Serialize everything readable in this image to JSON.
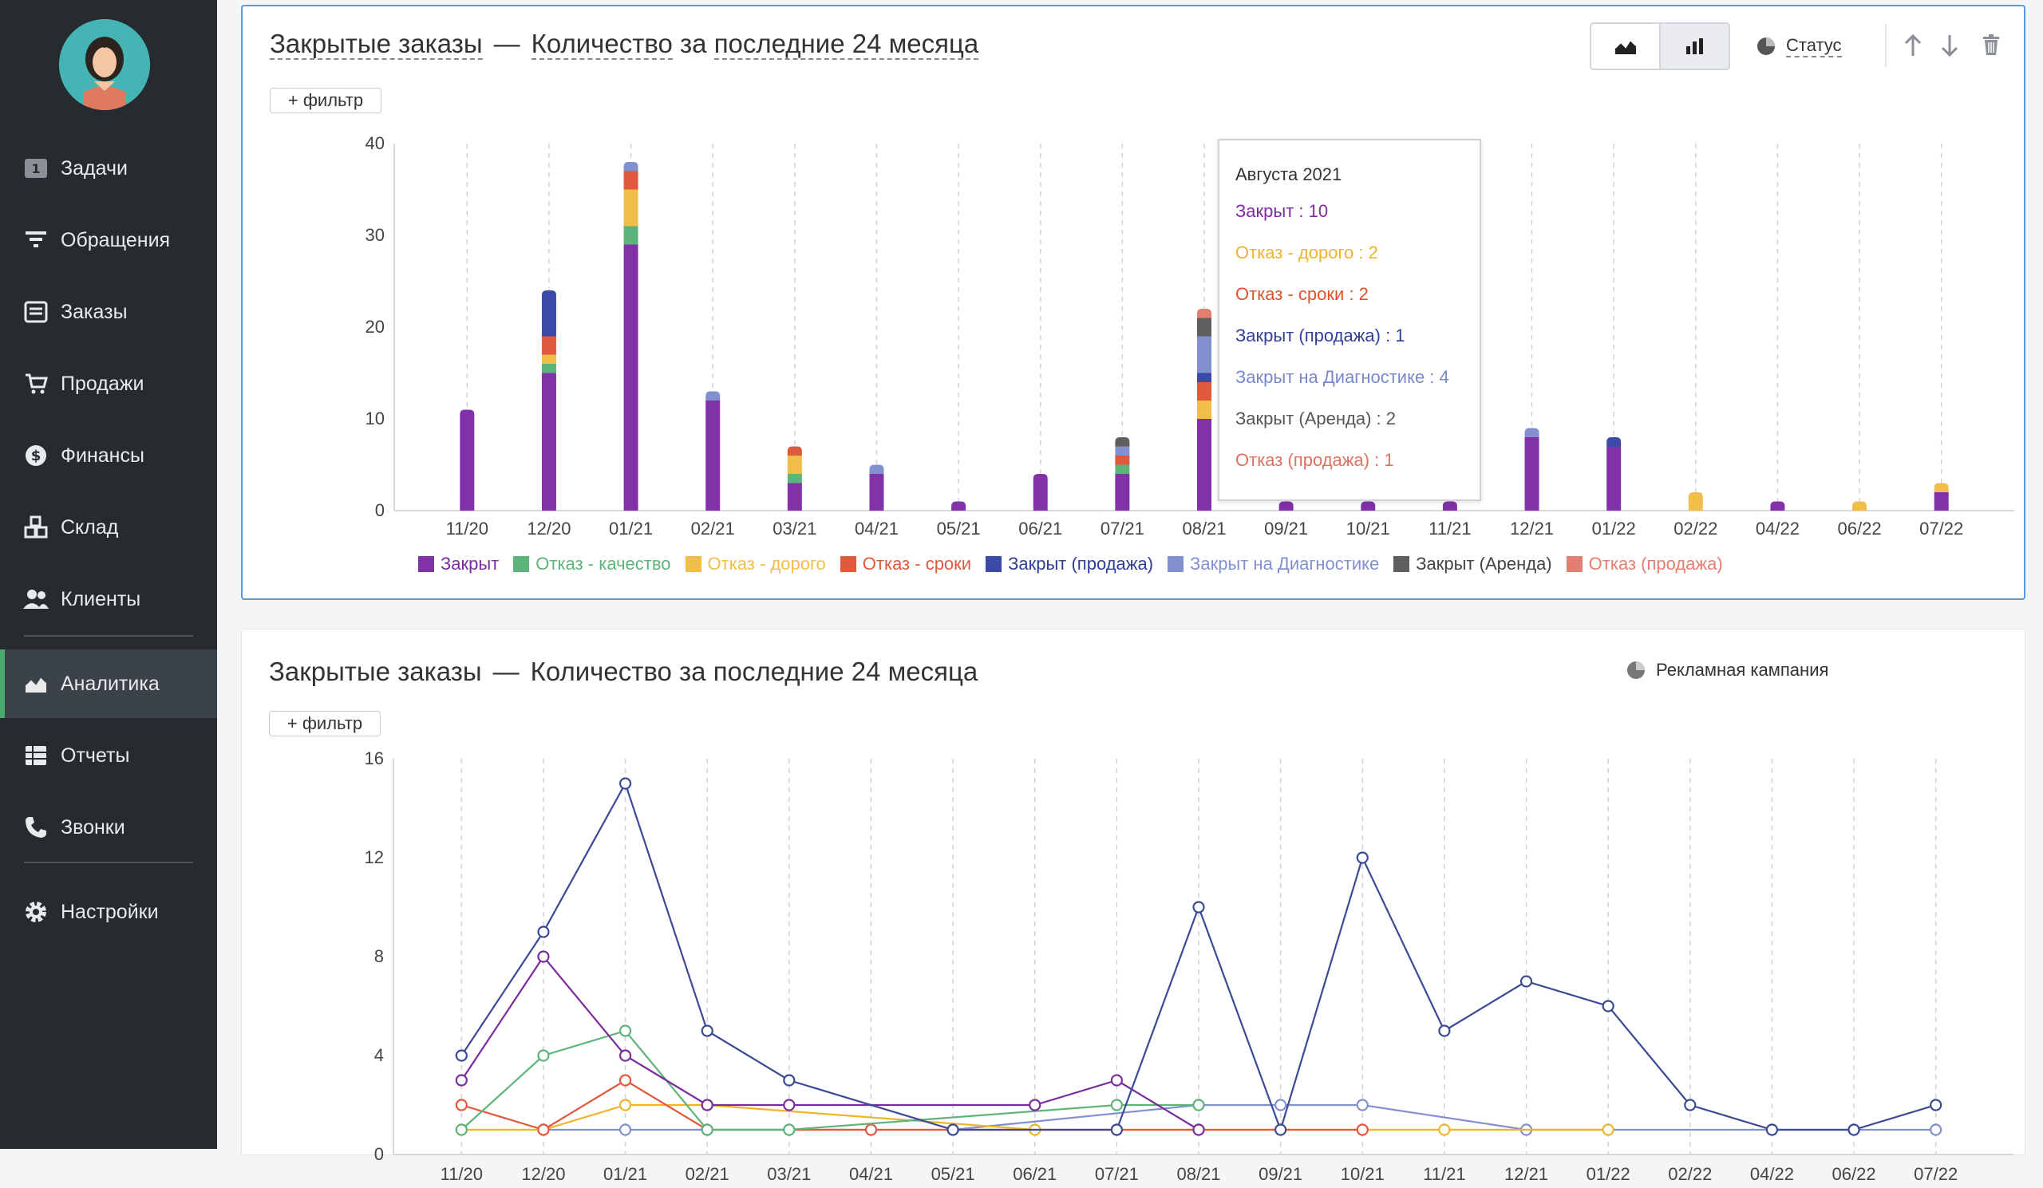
{
  "sidebar": {
    "items": [
      {
        "label": "Задачи",
        "icon": "tasks-badge-icon",
        "badge": "1"
      },
      {
        "label": "Обращения",
        "icon": "filter-icon"
      },
      {
        "label": "Заказы",
        "icon": "orders-icon"
      },
      {
        "label": "Продажи",
        "icon": "cart-icon"
      },
      {
        "label": "Финансы",
        "icon": "dollar-icon"
      },
      {
        "label": "Склад",
        "icon": "warehouse-boxes-icon"
      },
      {
        "label": "Клиенты",
        "icon": "users-icon"
      },
      {
        "label": "Аналитика",
        "icon": "area-chart-icon",
        "active": true
      },
      {
        "label": "Отчеты",
        "icon": "reports-grid-icon"
      },
      {
        "label": "Звонки",
        "icon": "phone-icon"
      },
      {
        "label": "Настройки",
        "icon": "gear-icon"
      }
    ]
  },
  "panel1": {
    "title_a": "Закрытые заказы",
    "title_sep": "—",
    "title_b": "Количество",
    "title_c": "за",
    "title_d": "последние 24 месяца",
    "filter_label": "+ фильтр",
    "group_label": "Статус",
    "tooltip": {
      "title": "Августа 2021",
      "rows": [
        {
          "text": "Закрыт : 10",
          "color": "#7b2d9e"
        },
        {
          "text": "Отказ - дорого : 2",
          "color": "#f0b429"
        },
        {
          "text": "Отказ - сроки : 2",
          "color": "#e0522b"
        },
        {
          "text": "Закрыт (продажа) : 1",
          "color": "#33409a"
        },
        {
          "text": "Закрыт на Диагностике : 4",
          "color": "#7b88c8"
        },
        {
          "text": "Закрыт (Аренда) : 2",
          "color": "#555555"
        },
        {
          "text": "Отказ (продажа) : 1",
          "color": "#e07060"
        }
      ]
    }
  },
  "panel2": {
    "title_a": "Закрытые заказы",
    "title_sep": "—",
    "title_b": "Количество",
    "title_c": "за",
    "title_d": "последние 24 месяца",
    "filter_label": "+ фильтр",
    "group_label": "Рекламная кампания"
  },
  "chart_data": [
    {
      "type": "bar",
      "stacked": true,
      "categories": [
        "11/20",
        "12/20",
        "01/21",
        "02/21",
        "03/21",
        "04/21",
        "05/21",
        "06/21",
        "07/21",
        "08/21",
        "09/21",
        "10/21",
        "11/21",
        "12/21",
        "01/22",
        "02/22",
        "04/22",
        "06/22",
        "07/22"
      ],
      "ylim": [
        0,
        40
      ],
      "yticks": [
        0,
        10,
        20,
        30,
        40
      ],
      "legend_position": "bottom",
      "series": [
        {
          "name": "Закрыт",
          "color": "#8331a8",
          "values": [
            11,
            15,
            29,
            12,
            3,
            4,
            1,
            4,
            4,
            10,
            1,
            1,
            1,
            8,
            7,
            0,
            1,
            0,
            2
          ]
        },
        {
          "name": "Отказ - качество",
          "color": "#5db47b",
          "values": [
            0,
            1,
            2,
            0,
            1,
            0,
            0,
            0,
            1,
            0,
            0,
            0,
            0,
            0,
            0,
            0,
            0,
            0,
            0
          ]
        },
        {
          "name": "Отказ - дорого",
          "color": "#f2be4a",
          "values": [
            0,
            1,
            4,
            0,
            2,
            0,
            0,
            0,
            0,
            2,
            0,
            0,
            0,
            0,
            0,
            2,
            0,
            1,
            1
          ]
        },
        {
          "name": "Отказ - сроки",
          "color": "#e2583a",
          "values": [
            0,
            2,
            2,
            0,
            1,
            0,
            0,
            0,
            1,
            2,
            0,
            0,
            0,
            0,
            0,
            0,
            0,
            0,
            0
          ]
        },
        {
          "name": "Закрыт (продажа)",
          "color": "#3a4aa6",
          "values": [
            0,
            5,
            0,
            0,
            0,
            0,
            0,
            0,
            0,
            1,
            0,
            0,
            0,
            0,
            1,
            0,
            0,
            0,
            0
          ]
        },
        {
          "name": "Закрыт на Диагностике",
          "color": "#8290cf",
          "values": [
            0,
            0,
            1,
            1,
            0,
            1,
            0,
            0,
            1,
            4,
            0,
            0,
            0,
            1,
            0,
            0,
            0,
            0,
            0
          ]
        },
        {
          "name": "Закрыт (Аренда)",
          "color": "#5f5f5f",
          "values": [
            0,
            0,
            0,
            0,
            0,
            0,
            0,
            0,
            1,
            2,
            0,
            0,
            0,
            0,
            0,
            0,
            0,
            0,
            0
          ]
        },
        {
          "name": "Отказ (продажа)",
          "color": "#e47e70",
          "values": [
            0,
            0,
            0,
            0,
            0,
            0,
            0,
            0,
            0,
            1,
            0,
            0,
            0,
            0,
            0,
            0,
            0,
            0,
            0
          ]
        }
      ]
    },
    {
      "type": "line",
      "categories": [
        "11/20",
        "12/20",
        "01/21",
        "02/21",
        "03/21",
        "04/21",
        "05/21",
        "06/21",
        "07/21",
        "08/21",
        "09/21",
        "10/21",
        "11/21",
        "12/21",
        "01/22",
        "02/22",
        "04/22",
        "06/22",
        "07/22"
      ],
      "ylim": [
        0,
        16
      ],
      "yticks": [
        0,
        4,
        8,
        12,
        16
      ],
      "series": [
        {
          "color": "#3b4a93",
          "values": [
            4,
            9,
            15,
            5,
            3,
            null,
            1,
            null,
            1,
            10,
            1,
            12,
            5,
            7,
            6,
            2,
            1,
            1,
            2
          ]
        },
        {
          "color": "#7b2d9e",
          "values": [
            3,
            8,
            4,
            2,
            2,
            null,
            null,
            2,
            3,
            1,
            null,
            null,
            null,
            null,
            null,
            null,
            null,
            null,
            null
          ]
        },
        {
          "color": "#5db47b",
          "values": [
            1,
            4,
            5,
            1,
            1,
            null,
            null,
            null,
            2,
            2,
            null,
            null,
            null,
            null,
            null,
            null,
            null,
            null,
            null
          ]
        },
        {
          "color": "#e2583a",
          "values": [
            2,
            1,
            3,
            1,
            null,
            1,
            null,
            null,
            1,
            1,
            null,
            1,
            null,
            null,
            null,
            null,
            null,
            null,
            null
          ]
        },
        {
          "color": "#f0b429",
          "values": [
            1,
            1,
            2,
            2,
            null,
            null,
            null,
            1,
            null,
            null,
            null,
            null,
            1,
            null,
            1,
            null,
            null,
            null,
            null
          ]
        },
        {
          "color": "#8290cf",
          "values": [
            null,
            1,
            1,
            1,
            1,
            1,
            1,
            null,
            null,
            2,
            2,
            2,
            null,
            1,
            null,
            null,
            1,
            1,
            1
          ]
        }
      ]
    }
  ]
}
